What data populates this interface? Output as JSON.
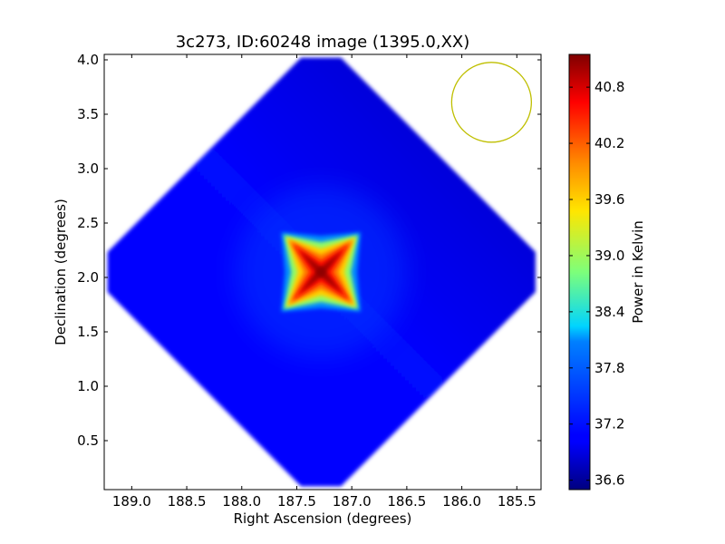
{
  "chart_data": {
    "type": "heatmap",
    "title": "3c273, ID:60248 image (1395.0,XX)",
    "xlabel": "Right Ascension (degrees)",
    "ylabel": "Declination (degrees)",
    "xlim": [
      189.25,
      185.28
    ],
    "ylim": [
      0.05,
      4.05
    ],
    "x_ticks": [
      "189.0",
      "188.5",
      "188.0",
      "187.5",
      "187.0",
      "186.5",
      "186.0",
      "185.5"
    ],
    "y_ticks": [
      "0.5",
      "1.0",
      "1.5",
      "2.0",
      "2.5",
      "3.0",
      "3.5",
      "4.0"
    ],
    "x_tick_values": [
      189.0,
      188.5,
      188.0,
      187.5,
      187.0,
      186.5,
      186.0,
      185.5
    ],
    "y_tick_values": [
      0.5,
      1.0,
      1.5,
      2.0,
      2.5,
      3.0,
      3.5,
      4.0
    ],
    "colormap": "jet",
    "colorbar": {
      "label": "Power in Kelvin",
      "range": [
        36.5,
        41.15
      ],
      "ticks": [
        "36.6",
        "37.2",
        "37.8",
        "38.4",
        "39.0",
        "39.6",
        "40.2",
        "40.8"
      ],
      "tick_values": [
        36.6,
        37.2,
        37.8,
        38.4,
        39.0,
        39.6,
        40.2,
        40.8
      ]
    },
    "image_footprint": {
      "shape": "diamond",
      "center": [
        187.28,
        2.05
      ],
      "extent_ra": [
        189.22,
        185.33
      ],
      "extent_dec": [
        0.08,
        4.02
      ]
    },
    "peak": {
      "ra": 187.28,
      "dec": 2.05,
      "value": 41.1
    },
    "background_value": 36.9,
    "beam": {
      "ra": 185.73,
      "dec": 3.61,
      "color": "#bfbf00",
      "shape": "circle"
    },
    "grid": false,
    "legend": "none"
  }
}
